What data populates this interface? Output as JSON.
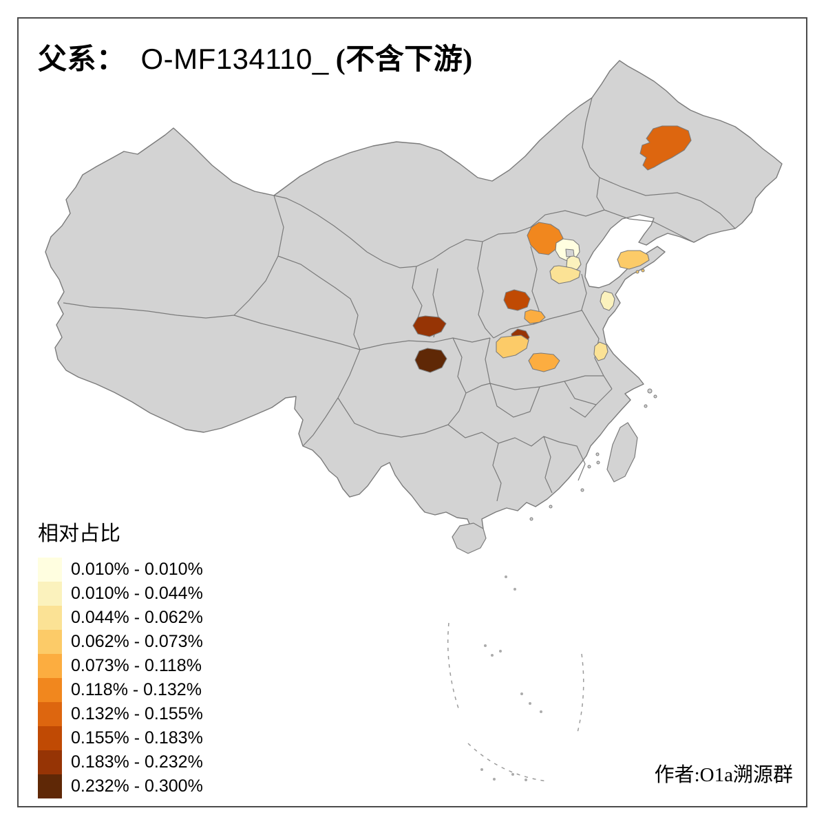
{
  "title": {
    "prefix": "父系：",
    "code": "O-MF134110_",
    "suffix": "(不含下游)"
  },
  "legend": {
    "title": "相对占比",
    "classes": [
      {
        "range": "0.010% - 0.010%",
        "color": "#FFFEE0"
      },
      {
        "range": "0.010% - 0.044%",
        "color": "#FBF2BD"
      },
      {
        "range": "0.044% - 0.062%",
        "color": "#FBE295"
      },
      {
        "range": "0.062% - 0.073%",
        "color": "#FCCB68"
      },
      {
        "range": "0.073% - 0.118%",
        "color": "#FCAD40"
      },
      {
        "range": "0.118% - 0.132%",
        "color": "#F1871E"
      },
      {
        "range": "0.132% - 0.155%",
        "color": "#DD660F"
      },
      {
        "range": "0.155% - 0.183%",
        "color": "#C04A04"
      },
      {
        "range": "0.183% - 0.232%",
        "color": "#963405"
      },
      {
        "range": "0.232% - 0.300%",
        "color": "#5F2806"
      }
    ]
  },
  "attribution": "作者:O1a溯源群",
  "map": {
    "land_fill": "#D3D3D3",
    "border_color": "#7A7A7A",
    "sea_color": "#FFFFFF",
    "regions": [
      {
        "id": "heilongjiang-central",
        "class": 7,
        "range": "0.132% - 0.155%"
      },
      {
        "id": "hebei-northwest",
        "class": 6,
        "range": "0.118% - 0.132%"
      },
      {
        "id": "beijing",
        "class": 1,
        "range": "0.010% - 0.010%"
      },
      {
        "id": "beijing-southeast",
        "class": 2,
        "range": "0.010% - 0.044%"
      },
      {
        "id": "hebei-central",
        "class": 3,
        "range": "0.044% - 0.062%"
      },
      {
        "id": "shandong-central",
        "class": 2,
        "range": "0.010% - 0.044%"
      },
      {
        "id": "shandong-peninsula",
        "class": 4,
        "range": "0.062% - 0.073%"
      },
      {
        "id": "jiangsu-northwest",
        "class": 3,
        "range": "0.044% - 0.062%"
      },
      {
        "id": "shanxi-southeast",
        "class": 8,
        "range": "0.155% - 0.183%"
      },
      {
        "id": "henan-northwest",
        "class": 5,
        "range": "0.073% - 0.118%"
      },
      {
        "id": "henan-center",
        "class": 9,
        "range": "0.183% - 0.232%"
      },
      {
        "id": "henan-west",
        "class": 4,
        "range": "0.062% - 0.073%"
      },
      {
        "id": "henan-south-central",
        "class": 5,
        "range": "0.073% - 0.118%"
      },
      {
        "id": "gansu-southeast",
        "class": 9,
        "range": "0.183% - 0.232%"
      },
      {
        "id": "gansu-south",
        "class": 10,
        "range": "0.232% - 0.300%"
      }
    ]
  }
}
